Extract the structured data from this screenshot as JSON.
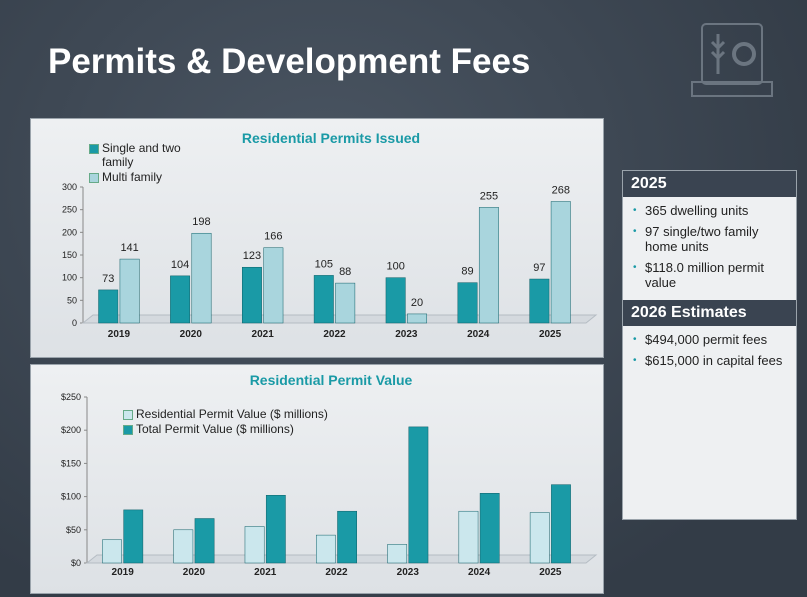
{
  "title": "Permits & Development Fees",
  "chart_data": [
    {
      "type": "bar",
      "title": "Residential Permits Issued",
      "categories": [
        "2019",
        "2020",
        "2021",
        "2022",
        "2023",
        "2024",
        "2025"
      ],
      "series": [
        {
          "name": "Single and two family",
          "color": "#1a9aa6",
          "values": [
            73,
            104,
            123,
            105,
            100,
            89,
            97
          ]
        },
        {
          "name": "Multi family",
          "color": "#a9d5dd",
          "values": [
            141,
            198,
            166,
            88,
            20,
            255,
            268
          ]
        }
      ],
      "ylim": [
        0,
        300
      ],
      "yticks": [
        0,
        50,
        100,
        150,
        200,
        250,
        300
      ],
      "data_labels": true
    },
    {
      "type": "bar",
      "title": "Residential Permit Value",
      "categories": [
        "2019",
        "2020",
        "2021",
        "2022",
        "2023",
        "2024",
        "2025"
      ],
      "series": [
        {
          "name": "Residential Permit Value ($ millions)",
          "color": "#cbe7ed",
          "values": [
            35,
            50,
            55,
            42,
            28,
            78,
            76
          ]
        },
        {
          "name": "Total Permit Value ($ millions)",
          "color": "#1a9aa6",
          "values": [
            80,
            67,
            102,
            78,
            205,
            105,
            118
          ]
        }
      ],
      "ylim": [
        0,
        250
      ],
      "yticks": [
        {
          "value": 0,
          "label": "$0"
        },
        {
          "value": 50,
          "label": "$50"
        },
        {
          "value": 100,
          "label": "$100"
        },
        {
          "value": 150,
          "label": "$150"
        },
        {
          "value": 200,
          "label": "$200"
        },
        {
          "value": 250,
          "label": "$250"
        }
      ],
      "data_labels": false
    }
  ],
  "panel": {
    "sections": [
      {
        "heading": "2025",
        "items": [
          "365 dwelling units",
          "97 single/two family home units",
          "$118.0 million permit value"
        ]
      },
      {
        "heading": "2026 Estimates",
        "items": [
          "$494,000 permit fees",
          "$615,000 in capital fees"
        ]
      }
    ]
  }
}
